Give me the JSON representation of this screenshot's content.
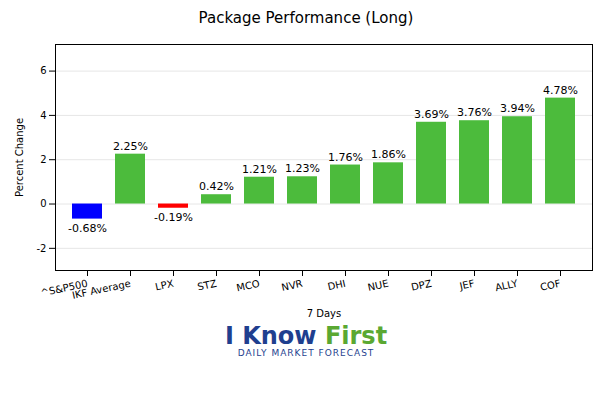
{
  "chart_data": {
    "type": "bar",
    "title": "Package Performance (Long)",
    "x_label": "7 Days",
    "y_label": "Percent Change",
    "categories": [
      "^S&P500",
      "IKF Average",
      "LPX",
      "STZ",
      "MCO",
      "NVR",
      "DHI",
      "NUE",
      "DPZ",
      "JEF",
      "ALLY",
      "COF"
    ],
    "values": [
      -0.68,
      2.25,
      -0.19,
      0.42,
      1.21,
      1.23,
      1.76,
      1.86,
      3.69,
      3.76,
      3.94,
      4.78
    ],
    "value_labels": [
      "-0.68%",
      "2.25%",
      "-0.19%",
      "0.42%",
      "1.21%",
      "1.23%",
      "1.76%",
      "1.86%",
      "3.69%",
      "3.76%",
      "3.94%",
      "4.78%"
    ],
    "colors": [
      "#0000ff",
      "#4cbb3c",
      "#ff0000",
      "#4cbb3c",
      "#4cbb3c",
      "#4cbb3c",
      "#4cbb3c",
      "#4cbb3c",
      "#4cbb3c",
      "#4cbb3c",
      "#4cbb3c",
      "#4cbb3c"
    ],
    "ylim": [
      -3,
      7.2
    ],
    "yticks": [
      -2,
      0,
      2,
      4,
      6
    ],
    "grid": true,
    "data_labels": true,
    "annotations": [
      "I Know First",
      "Daily Market Forecast"
    ]
  }
}
